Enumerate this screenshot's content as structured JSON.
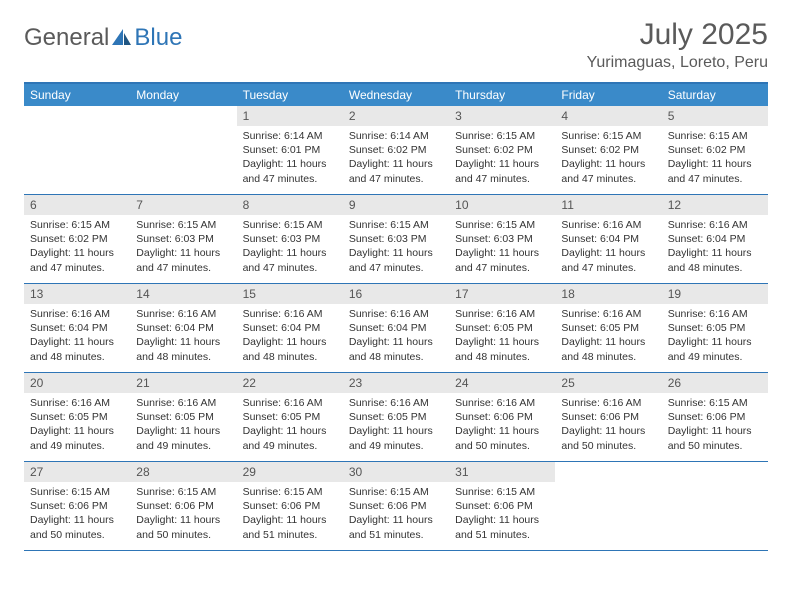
{
  "logo": {
    "text1": "General",
    "text2": "Blue"
  },
  "title": "July 2025",
  "location": "Yurimaguas, Loreto, Peru",
  "colors": {
    "header_bar": "#3a8ac9",
    "border": "#2e75b6",
    "daynum_bg": "#e8e8e8",
    "text": "#333333",
    "muted": "#5a5a5a",
    "white": "#ffffff"
  },
  "weekdays": [
    "Sunday",
    "Monday",
    "Tuesday",
    "Wednesday",
    "Thursday",
    "Friday",
    "Saturday"
  ],
  "weeks": [
    [
      null,
      null,
      {
        "n": "1",
        "sr": "6:14 AM",
        "ss": "6:01 PM",
        "dl": "11 hours and 47 minutes."
      },
      {
        "n": "2",
        "sr": "6:14 AM",
        "ss": "6:02 PM",
        "dl": "11 hours and 47 minutes."
      },
      {
        "n": "3",
        "sr": "6:15 AM",
        "ss": "6:02 PM",
        "dl": "11 hours and 47 minutes."
      },
      {
        "n": "4",
        "sr": "6:15 AM",
        "ss": "6:02 PM",
        "dl": "11 hours and 47 minutes."
      },
      {
        "n": "5",
        "sr": "6:15 AM",
        "ss": "6:02 PM",
        "dl": "11 hours and 47 minutes."
      }
    ],
    [
      {
        "n": "6",
        "sr": "6:15 AM",
        "ss": "6:02 PM",
        "dl": "11 hours and 47 minutes."
      },
      {
        "n": "7",
        "sr": "6:15 AM",
        "ss": "6:03 PM",
        "dl": "11 hours and 47 minutes."
      },
      {
        "n": "8",
        "sr": "6:15 AM",
        "ss": "6:03 PM",
        "dl": "11 hours and 47 minutes."
      },
      {
        "n": "9",
        "sr": "6:15 AM",
        "ss": "6:03 PM",
        "dl": "11 hours and 47 minutes."
      },
      {
        "n": "10",
        "sr": "6:15 AM",
        "ss": "6:03 PM",
        "dl": "11 hours and 47 minutes."
      },
      {
        "n": "11",
        "sr": "6:16 AM",
        "ss": "6:04 PM",
        "dl": "11 hours and 47 minutes."
      },
      {
        "n": "12",
        "sr": "6:16 AM",
        "ss": "6:04 PM",
        "dl": "11 hours and 48 minutes."
      }
    ],
    [
      {
        "n": "13",
        "sr": "6:16 AM",
        "ss": "6:04 PM",
        "dl": "11 hours and 48 minutes."
      },
      {
        "n": "14",
        "sr": "6:16 AM",
        "ss": "6:04 PM",
        "dl": "11 hours and 48 minutes."
      },
      {
        "n": "15",
        "sr": "6:16 AM",
        "ss": "6:04 PM",
        "dl": "11 hours and 48 minutes."
      },
      {
        "n": "16",
        "sr": "6:16 AM",
        "ss": "6:04 PM",
        "dl": "11 hours and 48 minutes."
      },
      {
        "n": "17",
        "sr": "6:16 AM",
        "ss": "6:05 PM",
        "dl": "11 hours and 48 minutes."
      },
      {
        "n": "18",
        "sr": "6:16 AM",
        "ss": "6:05 PM",
        "dl": "11 hours and 48 minutes."
      },
      {
        "n": "19",
        "sr": "6:16 AM",
        "ss": "6:05 PM",
        "dl": "11 hours and 49 minutes."
      }
    ],
    [
      {
        "n": "20",
        "sr": "6:16 AM",
        "ss": "6:05 PM",
        "dl": "11 hours and 49 minutes."
      },
      {
        "n": "21",
        "sr": "6:16 AM",
        "ss": "6:05 PM",
        "dl": "11 hours and 49 minutes."
      },
      {
        "n": "22",
        "sr": "6:16 AM",
        "ss": "6:05 PM",
        "dl": "11 hours and 49 minutes."
      },
      {
        "n": "23",
        "sr": "6:16 AM",
        "ss": "6:05 PM",
        "dl": "11 hours and 49 minutes."
      },
      {
        "n": "24",
        "sr": "6:16 AM",
        "ss": "6:06 PM",
        "dl": "11 hours and 50 minutes."
      },
      {
        "n": "25",
        "sr": "6:16 AM",
        "ss": "6:06 PM",
        "dl": "11 hours and 50 minutes."
      },
      {
        "n": "26",
        "sr": "6:15 AM",
        "ss": "6:06 PM",
        "dl": "11 hours and 50 minutes."
      }
    ],
    [
      {
        "n": "27",
        "sr": "6:15 AM",
        "ss": "6:06 PM",
        "dl": "11 hours and 50 minutes."
      },
      {
        "n": "28",
        "sr": "6:15 AM",
        "ss": "6:06 PM",
        "dl": "11 hours and 50 minutes."
      },
      {
        "n": "29",
        "sr": "6:15 AM",
        "ss": "6:06 PM",
        "dl": "11 hours and 51 minutes."
      },
      {
        "n": "30",
        "sr": "6:15 AM",
        "ss": "6:06 PM",
        "dl": "11 hours and 51 minutes."
      },
      {
        "n": "31",
        "sr": "6:15 AM",
        "ss": "6:06 PM",
        "dl": "11 hours and 51 minutes."
      },
      null,
      null
    ]
  ],
  "labels": {
    "sunrise": "Sunrise:",
    "sunset": "Sunset:",
    "daylight": "Daylight:"
  }
}
